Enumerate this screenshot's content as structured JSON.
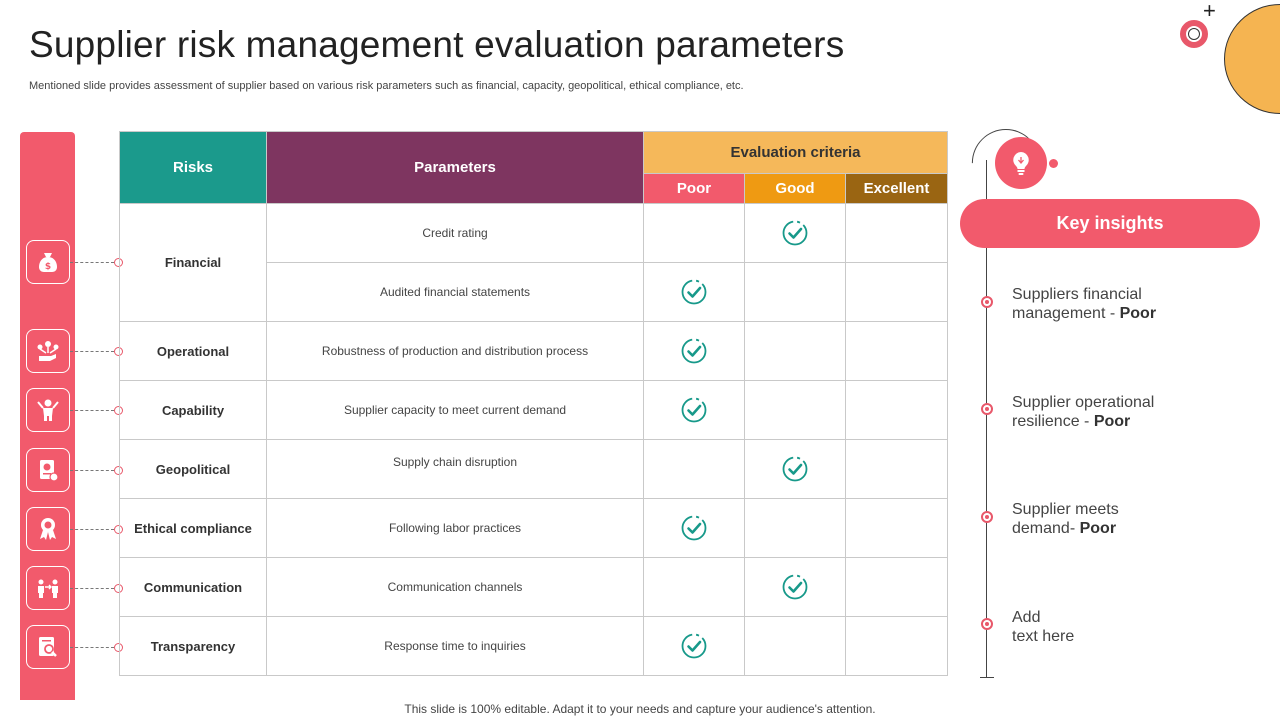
{
  "title": "Supplier risk management evaluation parameters",
  "subtitle": "Mentioned slide provides assessment of supplier based on various risk parameters such as financial, capacity, geopolitical, ethical compliance, etc.",
  "footer": "This slide is 100% editable. Adapt it to your needs and capture your audience's attention.",
  "table": {
    "header": {
      "risks": "Risks",
      "parameters": "Parameters",
      "evaluation": "Evaluation criteria",
      "poor": "Poor",
      "good": "Good",
      "excellent": "Excellent"
    },
    "risks": [
      "Financial",
      "Operational",
      "Capability",
      "Geopolitical",
      "Ethical compliance",
      "Communication",
      "Transparency"
    ],
    "parameters": [
      {
        "text": "Credit rating",
        "rating": "Good"
      },
      {
        "text": "Audited financial statements",
        "rating": "Poor"
      },
      {
        "text": "Robustness of production and distribution process",
        "rating": "Poor"
      },
      {
        "text": "Supplier capacity to meet current demand",
        "rating": "Poor"
      },
      {
        "text": "Supply chain disruption",
        "rating": "Good"
      },
      {
        "text": "Following labor practices",
        "rating": "Poor"
      },
      {
        "text": "Communication channels",
        "rating": "Good"
      },
      {
        "text": "Response time to inquiries",
        "rating": "Poor"
      }
    ]
  },
  "side_icons": [
    "money-bag-icon",
    "network-hand-icon",
    "person-target-icon",
    "document-coin-icon",
    "award-ribbon-icon",
    "people-exchange-icon",
    "document-search-icon"
  ],
  "key_insights": {
    "title": "Key insights",
    "items": [
      {
        "line1": "Suppliers financial",
        "line2_prefix": "management - ",
        "emphasis": "Poor"
      },
      {
        "line1": "Supplier operational",
        "line2_prefix": "resilience - ",
        "emphasis": "Poor"
      },
      {
        "line1": "Supplier meets",
        "line2_prefix": "demand- ",
        "emphasis": "Poor"
      },
      {
        "line1": "Add",
        "line2_prefix": "text here",
        "emphasis": ""
      }
    ]
  },
  "colors": {
    "accent_red": "#f25a6c",
    "teal": "#1b9a8c",
    "plum": "#7e3560",
    "amber": "#f5b85a",
    "orange": "#ef9a12",
    "brown": "#9a6512",
    "check_teal": "#17998a"
  }
}
